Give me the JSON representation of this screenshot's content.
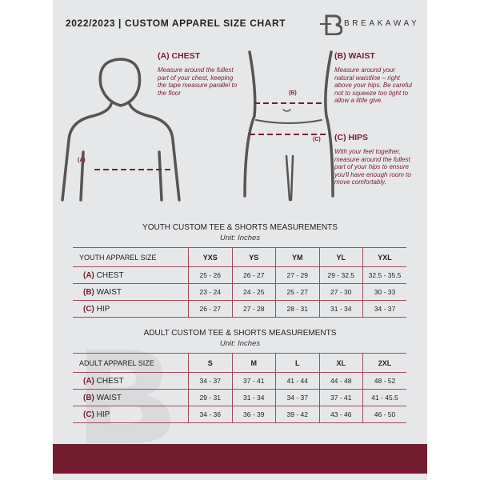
{
  "header": {
    "title": "2022/2023  |  CUSTOM APPAREL SIZE CHART",
    "brand": "BREAKAWAY"
  },
  "guide": {
    "chest": {
      "heading": "(A) CHEST",
      "text": "Measure around the fullest part of your chest, keeping the tape measure parallel to the floor",
      "marker": "(A)"
    },
    "waist": {
      "heading": "(B) WAIST",
      "text": "Measure around your natural waistline – right above your hips. Be careful not to squeeze too tight to allow a little give.",
      "marker": "(B)"
    },
    "hips": {
      "heading": "(C) HIPS",
      "text": "With your feet together, measure around the fullest part of your hips to ensure you'll have enough room to move comfortably.",
      "marker": "(C)"
    }
  },
  "youth": {
    "title": "YOUTH CUSTOM TEE & SHORTS MEASUREMENTS",
    "unit": "Unit: Inches",
    "header": [
      "YOUTH APPAREL SIZE",
      "YXS",
      "YS",
      "YM",
      "YL",
      "YXL"
    ],
    "rows": [
      {
        "letter": "(A)",
        "label": "CHEST",
        "values": [
          "25 - 26",
          "26 - 27",
          "27 - 29",
          "29 - 32.5",
          "32.5 - 35.5"
        ]
      },
      {
        "letter": "(B)",
        "label": "WAIST",
        "values": [
          "23 - 24",
          "24 - 25",
          "25 - 27",
          "27 - 30",
          "30 - 33"
        ]
      },
      {
        "letter": "(C)",
        "label": "HIP",
        "values": [
          "26 - 27",
          "27 - 28",
          "28 - 31",
          "31 - 34",
          "34 - 37"
        ]
      }
    ]
  },
  "adult": {
    "title": "ADULT CUSTOM TEE & SHORTS MEASUREMENTS",
    "unit": "Unit: Inches",
    "header": [
      "ADULT APPAREL SIZE",
      "S",
      "M",
      "L",
      "XL",
      "2XL"
    ],
    "rows": [
      {
        "letter": "(A)",
        "label": "CHEST",
        "values": [
          "34 - 37",
          "37 - 41",
          "41 - 44",
          "44 - 48",
          "48 - 52"
        ]
      },
      {
        "letter": "(B)",
        "label": "WAIST",
        "values": [
          "29 - 31",
          "31 - 34",
          "34 - 37",
          "37 - 41",
          "41 - 45.5"
        ]
      },
      {
        "letter": "(C)",
        "label": "HIP",
        "values": [
          "34 - 36",
          "36 - 39",
          "39 - 42",
          "43 - 46",
          "46 - 50"
        ]
      }
    ]
  },
  "colors": {
    "accent": "#731c30",
    "panel": "#e6e7e9"
  }
}
